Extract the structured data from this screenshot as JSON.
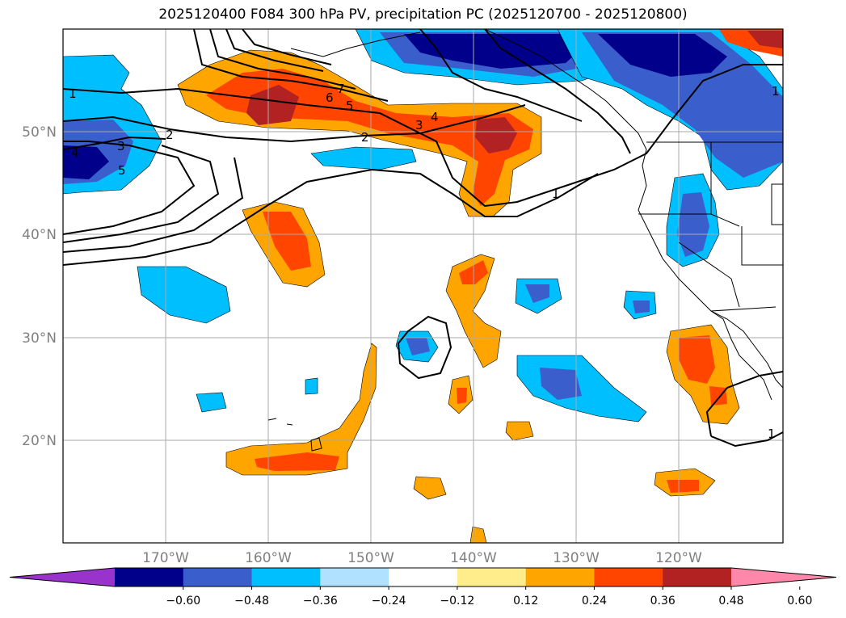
{
  "title": "2025120400 F084 300 hPa PV, precipitation PC (2025120700 - 2025120800)",
  "lat_labels": [
    "50°N",
    "40°N",
    "30°N",
    "20°N"
  ],
  "lon_labels": [
    "170°W",
    "160°W",
    "150°W",
    "140°W",
    "130°W",
    "120°W"
  ],
  "colorbar": {
    "colors": [
      "#9933cc",
      "#00008b",
      "#3a5fcd",
      "#00bfff",
      "#b0e2ff",
      "#ffffff",
      "#ffec8b",
      "#ffa500",
      "#ff4500",
      "#b22222",
      "#ff88aa"
    ],
    "ticks": [
      "−0.60",
      "−0.48",
      "−0.36",
      "−0.24",
      "−0.12",
      "0.12",
      "0.24",
      "0.36",
      "0.48",
      "0.60"
    ]
  },
  "contour_labels": [
    "1",
    "2",
    "3",
    "4",
    "5",
    "6",
    "7",
    "5",
    "4",
    "3",
    "2",
    "1",
    "1",
    "1"
  ]
}
